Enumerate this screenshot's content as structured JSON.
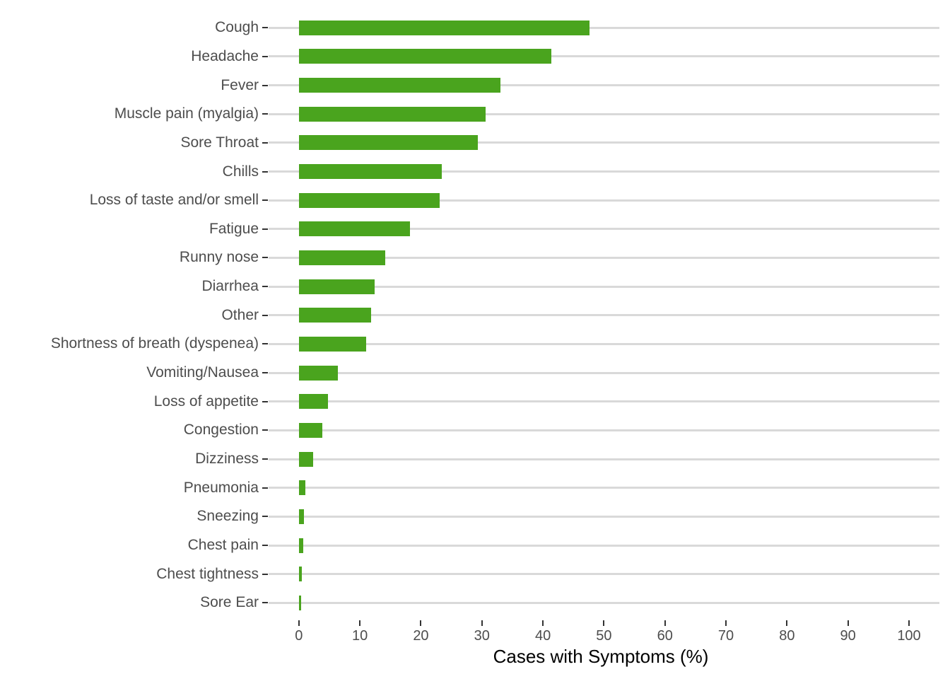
{
  "chart_data": {
    "type": "bar",
    "orientation": "horizontal",
    "title": "",
    "xlabel": "Cases with Symptoms (%)",
    "ylabel": "",
    "xlim": [
      0,
      100
    ],
    "x_ticks": [
      0,
      10,
      20,
      30,
      40,
      50,
      60,
      70,
      80,
      90,
      100
    ],
    "grid": "horizontal line per category, no vertical gridlines",
    "legend": "none",
    "categories": [
      "Cough",
      "Headache",
      "Fever",
      "Muscle pain (myalgia)",
      "Sore Throat",
      "Chills",
      "Loss of taste and/or smell",
      "Fatigue",
      "Runny nose",
      "Diarrhea",
      "Other",
      "Shortness of breath (dyspenea)",
      "Vomiting/Nausea",
      "Loss of appetite",
      "Congestion",
      "Dizziness",
      "Pneumonia",
      "Sneezing",
      "Chest pain",
      "Chest tightness",
      "Sore Ear"
    ],
    "values": [
      47.6,
      41.3,
      33.0,
      30.6,
      29.3,
      23.4,
      23.1,
      18.2,
      14.1,
      12.4,
      11.8,
      11.0,
      6.4,
      4.8,
      3.8,
      2.3,
      1.0,
      0.8,
      0.7,
      0.5,
      0.3
    ],
    "colors": {
      "bar": "#4AA41E",
      "gridline": "#D9D9D9",
      "tick_mark": "#333333",
      "axis_text": "#4D4D4D",
      "axis_title": "#000000",
      "background": "#FFFFFF"
    }
  }
}
